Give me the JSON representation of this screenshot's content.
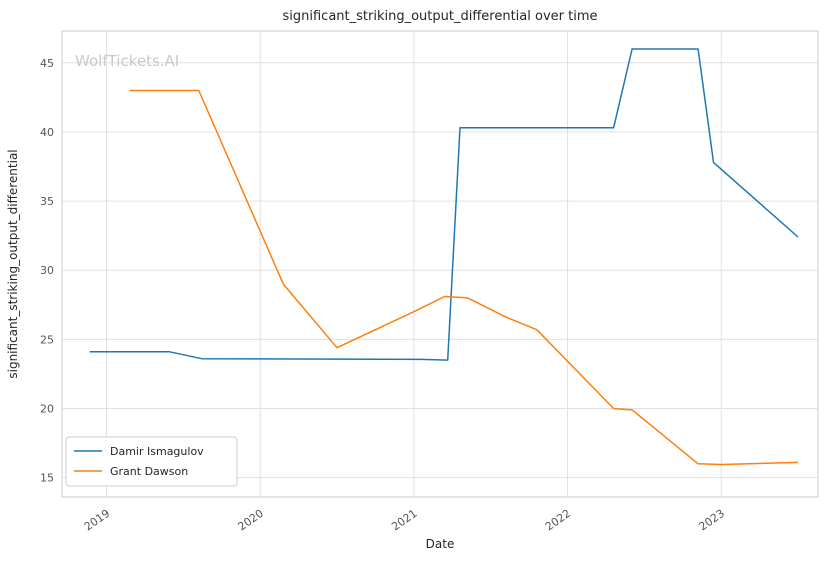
{
  "watermark": "WolfTickets.AI",
  "chart_data": {
    "type": "line",
    "title": "significant_striking_output_differential over time",
    "xlabel": "Date",
    "ylabel": "significant_striking_output_differential",
    "xlim": [
      2018.71,
      2023.63
    ],
    "ylim": [
      13.6,
      47.3
    ],
    "xticks": [
      2019,
      2020,
      2021,
      2022,
      2023
    ],
    "yticks": [
      15,
      20,
      25,
      30,
      35,
      40,
      45
    ],
    "grid": true,
    "legend_position": "lower left",
    "series": [
      {
        "name": "Damir Ismagulov",
        "color": "#1f77b4",
        "points": [
          [
            2018.89,
            24.1
          ],
          [
            2019.41,
            24.1
          ],
          [
            2019.62,
            23.6
          ],
          [
            2021.05,
            23.55
          ],
          [
            2021.22,
            23.5
          ],
          [
            2021.3,
            40.3
          ],
          [
            2022.3,
            40.3
          ],
          [
            2022.42,
            46.0
          ],
          [
            2022.85,
            46.0
          ],
          [
            2022.95,
            37.8
          ],
          [
            2023.5,
            32.4
          ]
        ]
      },
      {
        "name": "Grant Dawson",
        "color": "#ff7f0e",
        "points": [
          [
            2019.15,
            43.0
          ],
          [
            2019.6,
            43.0
          ],
          [
            2020.15,
            29.0
          ],
          [
            2020.5,
            24.4
          ],
          [
            2021.0,
            27.0
          ],
          [
            2021.2,
            28.1
          ],
          [
            2021.35,
            28.0
          ],
          [
            2021.6,
            26.6
          ],
          [
            2021.8,
            25.7
          ],
          [
            2022.3,
            20.0
          ],
          [
            2022.42,
            19.9
          ],
          [
            2022.85,
            16.0
          ],
          [
            2023.0,
            15.95
          ],
          [
            2023.5,
            16.1
          ]
        ]
      }
    ]
  }
}
